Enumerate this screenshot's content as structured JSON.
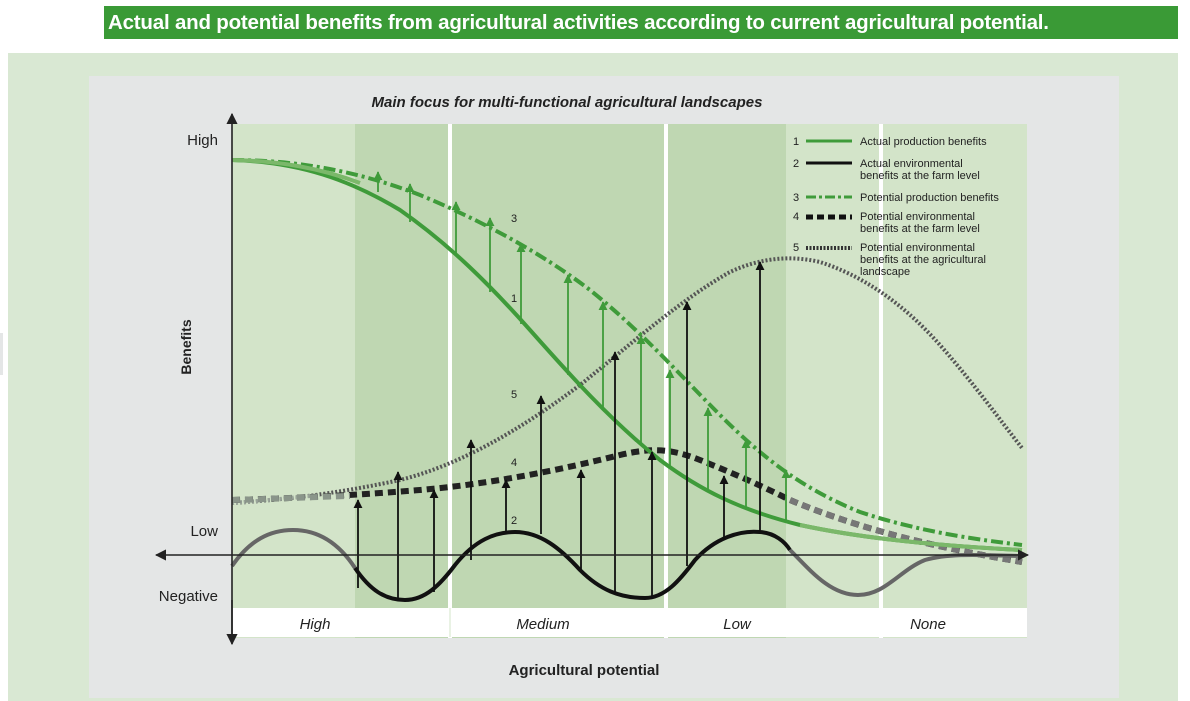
{
  "header": "Actual and potential benefits from agricultural activities according to current agricultural potential.",
  "subtitle": "Main focus for multi-functional agricultural landscapes",
  "y_axis": {
    "label": "Benefits",
    "ticks": [
      "High",
      "Low",
      "Negative"
    ]
  },
  "x_axis": {
    "label": "Agricultural potential",
    "zones": [
      "High",
      "Medium",
      "Low",
      "None"
    ]
  },
  "legend": [
    {
      "num": "1",
      "label": "Actual production benefits",
      "style": "solid-green"
    },
    {
      "num": "2",
      "label": "Actual environmental benefits at the farm level",
      "style": "solid-black"
    },
    {
      "num": "3",
      "label": "Potential production benefits",
      "style": "dashdot-green"
    },
    {
      "num": "4",
      "label": "Potential environmental benefits at the farm level",
      "style": "dashed-black"
    },
    {
      "num": "5",
      "label": "Potential environmental benefits at the agricultural landscape",
      "style": "dotted-black"
    }
  ],
  "curve_labels": [
    "3",
    "1",
    "5",
    "4",
    "2"
  ],
  "colors": {
    "header_green": "#3a9a36",
    "curve_green": "#3f9b3a",
    "curve_green_light": "#7bb86a",
    "outer_bg": "#d9e8d3",
    "inner_bg": "#e4e6e6",
    "zone_light": "#d3e4c9",
    "zone_dark": "#bfd7b2"
  }
}
